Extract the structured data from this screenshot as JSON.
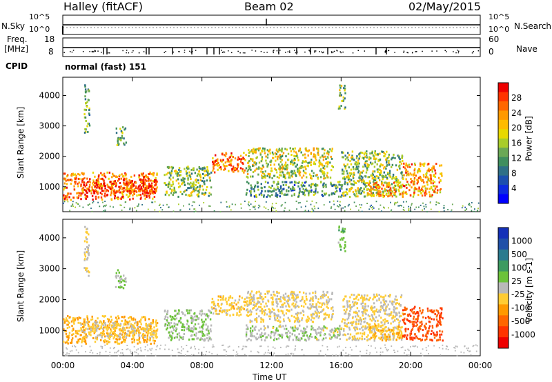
{
  "header": {
    "station": "Halley (fitACF)",
    "beam": "Beam 02",
    "date": "02/May/2015"
  },
  "nsky_panel": {
    "left_label": "N.Sky",
    "right_label": "N.Search",
    "left_ticks": [
      "10^5",
      "10^0"
    ],
    "right_ticks": [
      "10^5",
      "10^0"
    ]
  },
  "freq_panel": {
    "left_label_1": "Freq.",
    "left_label_2": "[MHz]",
    "right_label": "Nave",
    "left_ticks": [
      "18",
      "8"
    ],
    "right_ticks": [
      "60",
      "0"
    ]
  },
  "cpid": {
    "label": "CPID",
    "value": "normal (fast) 151"
  },
  "power_panel": {
    "ylabel": "Slant Range [km]",
    "cbar_label": "Power [dB]",
    "cbar_ticks": [
      "28",
      "24",
      "20",
      "16",
      "12",
      "8",
      "4"
    ],
    "cbar_colors": [
      "#ee0000",
      "#ff3300",
      "#ff6600",
      "#ff9900",
      "#ffbb00",
      "#e8d800",
      "#a8cc2a",
      "#6aa855",
      "#3f8e5e",
      "#2e6f86",
      "#1c4fae",
      "#0d2be0",
      "#0000ff"
    ]
  },
  "velocity_panel": {
    "ylabel": "Slant Range [km]",
    "cbar_label": "Velocity [m s-1]",
    "cbar_ticks": [
      "1000",
      "500",
      "100",
      "25",
      "-25",
      "-100",
      "-500",
      "-1000"
    ],
    "cbar_colors": [
      "#1430b8",
      "#2050a8",
      "#2a7a8e",
      "#3d9a60",
      "#6cc23a",
      "#b9b9b9",
      "#ffcc33",
      "#ff9900",
      "#ff6600",
      "#ff3300",
      "#ee0000"
    ]
  },
  "x_axis": {
    "label": "Time UT",
    "ticks": [
      "00:00",
      "04:00",
      "08:00",
      "12:00",
      "16:00",
      "20:00",
      "00:00"
    ]
  },
  "chart_data": {
    "type": "heatmap",
    "x_range_hours": [
      0,
      24
    ],
    "y_range_km": [
      180,
      4600
    ],
    "y_ticks_km": [
      1000,
      2000,
      3000,
      4000
    ],
    "power_scale_db": [
      0,
      30
    ],
    "velocity_scale_ms": [
      -1000,
      1000
    ],
    "scatter_regions": [
      {
        "t": [
          0.0,
          5.4
        ],
        "r": [
          600,
          1500
        ],
        "power_db": 24,
        "velocity_ms": -300
      },
      {
        "t": [
          1.0,
          5.4
        ],
        "r": [
          800,
          1300
        ],
        "power_db": 28,
        "velocity_ms": -150
      },
      {
        "t": [
          5.8,
          8.5
        ],
        "r": [
          700,
          1700
        ],
        "power_db": 14,
        "velocity_ms": 80
      },
      {
        "t": [
          8.5,
          10.5
        ],
        "r": [
          1500,
          2150
        ],
        "power_db": 24,
        "velocity_ms": -200
      },
      {
        "t": [
          10.5,
          15.5
        ],
        "r": [
          1300,
          2300
        ],
        "power_db": 16,
        "velocity_ms": -100
      },
      {
        "t": [
          10.5,
          16.0
        ],
        "r": [
          700,
          1200
        ],
        "power_db": 10,
        "velocity_ms": 30
      },
      {
        "t": [
          16.0,
          19.5
        ],
        "r": [
          700,
          2200
        ],
        "power_db": 14,
        "velocity_ms": -100
      },
      {
        "t": [
          17.5,
          19.5
        ],
        "r": [
          700,
          1200
        ],
        "power_db": 22,
        "velocity_ms": -300
      },
      {
        "t": [
          19.5,
          21.8
        ],
        "r": [
          700,
          1800
        ],
        "power_db": 22,
        "velocity_ms": -700
      },
      {
        "t": [
          1.2,
          1.5
        ],
        "r": [
          2800,
          4400
        ],
        "power_db": 12,
        "velocity_ms": -100
      },
      {
        "t": [
          3.0,
          3.6
        ],
        "r": [
          2400,
          3000
        ],
        "power_db": 14,
        "velocity_ms": 100
      },
      {
        "t": [
          15.8,
          16.2
        ],
        "r": [
          3600,
          4400
        ],
        "power_db": 14,
        "velocity_ms": 200
      }
    ]
  }
}
